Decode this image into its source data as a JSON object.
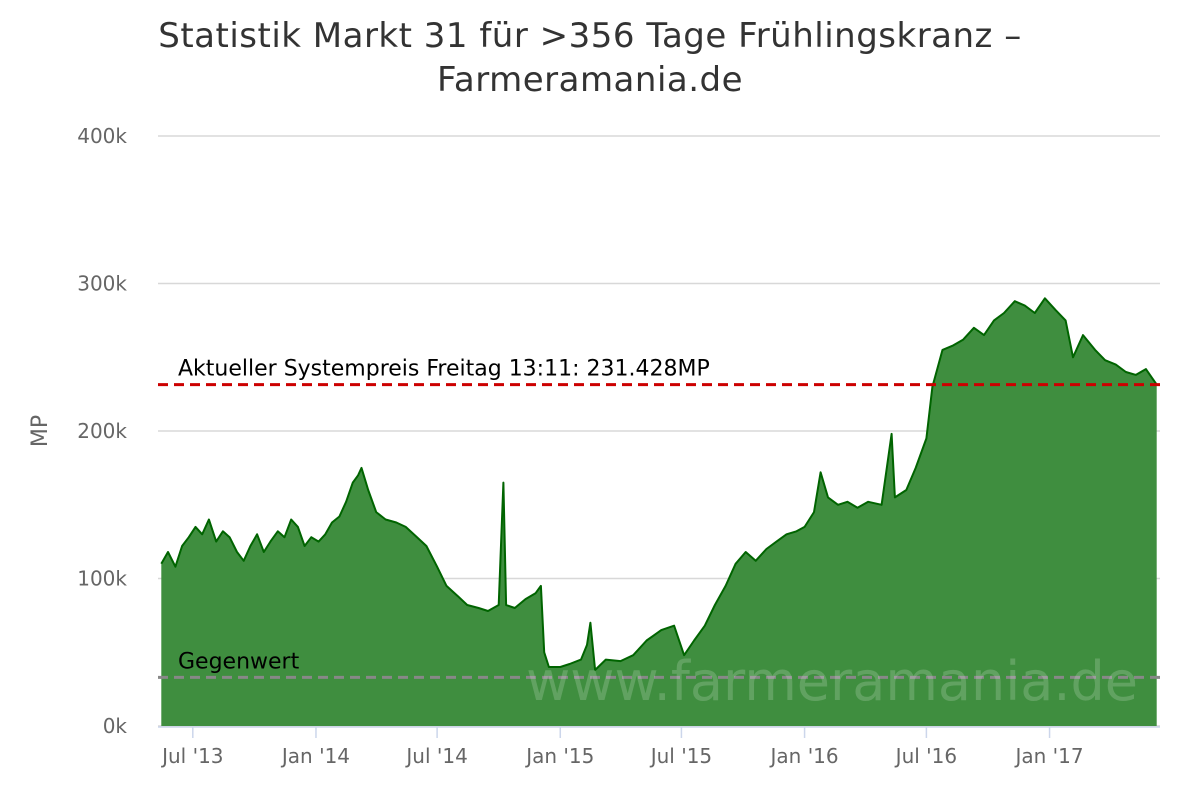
{
  "chart_data": {
    "type": "area",
    "title_line1": "Statistik Markt 31 für >356 Tage Frühlingskranz –",
    "title_line2": "Farmeramania.de",
    "ylabel": "MP",
    "ylim": [
      0,
      400000
    ],
    "y_ticks": [
      {
        "value": 0,
        "label": "0k"
      },
      {
        "value": 100000,
        "label": "100k"
      },
      {
        "value": 200000,
        "label": "200k"
      },
      {
        "value": 300000,
        "label": "300k"
      },
      {
        "value": 400000,
        "label": "400k"
      }
    ],
    "x_range": [
      "2013-05-10",
      "2017-06-15"
    ],
    "x_ticks": [
      {
        "date": "2013-07-01",
        "label": "Jul '13"
      },
      {
        "date": "2014-01-01",
        "label": "Jan '14"
      },
      {
        "date": "2014-07-01",
        "label": "Jul '14"
      },
      {
        "date": "2015-01-01",
        "label": "Jan '15"
      },
      {
        "date": "2015-07-01",
        "label": "Jul '15"
      },
      {
        "date": "2016-01-01",
        "label": "Jan '16"
      },
      {
        "date": "2016-07-01",
        "label": "Jul '16"
      },
      {
        "date": "2017-01-01",
        "label": "Jan '17"
      }
    ],
    "grid": true,
    "legend": "none",
    "series": [
      {
        "color": "#006400",
        "fill": "#3f8e3f",
        "points": [
          [
            "2013-05-15",
            110000
          ],
          [
            "2013-05-25",
            118000
          ],
          [
            "2013-06-05",
            108000
          ],
          [
            "2013-06-15",
            122000
          ],
          [
            "2013-06-25",
            128000
          ],
          [
            "2013-07-05",
            135000
          ],
          [
            "2013-07-15",
            130000
          ],
          [
            "2013-07-25",
            140000
          ],
          [
            "2013-08-05",
            125000
          ],
          [
            "2013-08-15",
            132000
          ],
          [
            "2013-08-25",
            128000
          ],
          [
            "2013-09-05",
            118000
          ],
          [
            "2013-09-15",
            112000
          ],
          [
            "2013-09-25",
            122000
          ],
          [
            "2013-10-05",
            130000
          ],
          [
            "2013-10-15",
            118000
          ],
          [
            "2013-10-25",
            125000
          ],
          [
            "2013-11-05",
            132000
          ],
          [
            "2013-11-15",
            128000
          ],
          [
            "2013-11-25",
            140000
          ],
          [
            "2013-12-05",
            135000
          ],
          [
            "2013-12-15",
            122000
          ],
          [
            "2013-12-25",
            128000
          ],
          [
            "2014-01-05",
            125000
          ],
          [
            "2014-01-15",
            130000
          ],
          [
            "2014-01-25",
            138000
          ],
          [
            "2014-02-05",
            142000
          ],
          [
            "2014-02-15",
            152000
          ],
          [
            "2014-02-25",
            165000
          ],
          [
            "2014-03-05",
            170000
          ],
          [
            "2014-03-10",
            175000
          ],
          [
            "2014-03-20",
            160000
          ],
          [
            "2014-04-01",
            145000
          ],
          [
            "2014-04-15",
            140000
          ],
          [
            "2014-05-01",
            138000
          ],
          [
            "2014-05-15",
            135000
          ],
          [
            "2014-06-01",
            128000
          ],
          [
            "2014-06-15",
            122000
          ],
          [
            "2014-07-01",
            108000
          ],
          [
            "2014-07-15",
            95000
          ],
          [
            "2014-08-01",
            88000
          ],
          [
            "2014-08-15",
            82000
          ],
          [
            "2014-09-01",
            80000
          ],
          [
            "2014-09-15",
            78000
          ],
          [
            "2014-10-01",
            82000
          ],
          [
            "2014-10-08",
            165000
          ],
          [
            "2014-10-12",
            82000
          ],
          [
            "2014-10-25",
            80000
          ],
          [
            "2014-11-10",
            86000
          ],
          [
            "2014-11-25",
            90000
          ],
          [
            "2014-12-03",
            95000
          ],
          [
            "2014-12-08",
            50000
          ],
          [
            "2014-12-15",
            40000
          ],
          [
            "2015-01-01",
            40000
          ],
          [
            "2015-01-15",
            42000
          ],
          [
            "2015-02-01",
            45000
          ],
          [
            "2015-02-10",
            55000
          ],
          [
            "2015-02-15",
            70000
          ],
          [
            "2015-02-22",
            38000
          ],
          [
            "2015-03-10",
            45000
          ],
          [
            "2015-04-01",
            44000
          ],
          [
            "2015-04-20",
            48000
          ],
          [
            "2015-05-10",
            58000
          ],
          [
            "2015-06-01",
            65000
          ],
          [
            "2015-06-20",
            68000
          ],
          [
            "2015-07-05",
            48000
          ],
          [
            "2015-07-20",
            58000
          ],
          [
            "2015-08-05",
            68000
          ],
          [
            "2015-08-20",
            82000
          ],
          [
            "2015-09-05",
            95000
          ],
          [
            "2015-09-20",
            110000
          ],
          [
            "2015-10-05",
            118000
          ],
          [
            "2015-10-20",
            112000
          ],
          [
            "2015-11-05",
            120000
          ],
          [
            "2015-11-20",
            125000
          ],
          [
            "2015-12-05",
            130000
          ],
          [
            "2015-12-20",
            132000
          ],
          [
            "2016-01-01",
            135000
          ],
          [
            "2016-01-15",
            145000
          ],
          [
            "2016-01-25",
            172000
          ],
          [
            "2016-02-05",
            155000
          ],
          [
            "2016-02-20",
            150000
          ],
          [
            "2016-03-05",
            152000
          ],
          [
            "2016-03-20",
            148000
          ],
          [
            "2016-04-05",
            152000
          ],
          [
            "2016-04-25",
            150000
          ],
          [
            "2016-05-10",
            198000
          ],
          [
            "2016-05-15",
            155000
          ],
          [
            "2016-06-01",
            160000
          ],
          [
            "2016-06-15",
            175000
          ],
          [
            "2016-07-01",
            195000
          ],
          [
            "2016-07-10",
            230000
          ],
          [
            "2016-07-25",
            255000
          ],
          [
            "2016-08-10",
            258000
          ],
          [
            "2016-08-25",
            262000
          ],
          [
            "2016-09-10",
            270000
          ],
          [
            "2016-09-25",
            265000
          ],
          [
            "2016-10-10",
            275000
          ],
          [
            "2016-10-25",
            280000
          ],
          [
            "2016-11-10",
            288000
          ],
          [
            "2016-11-25",
            285000
          ],
          [
            "2016-12-10",
            280000
          ],
          [
            "2016-12-25",
            290000
          ],
          [
            "2017-01-10",
            282000
          ],
          [
            "2017-01-25",
            275000
          ],
          [
            "2017-02-05",
            250000
          ],
          [
            "2017-02-20",
            265000
          ],
          [
            "2017-03-10",
            255000
          ],
          [
            "2017-03-25",
            248000
          ],
          [
            "2017-04-10",
            245000
          ],
          [
            "2017-04-25",
            240000
          ],
          [
            "2017-05-10",
            238000
          ],
          [
            "2017-05-25",
            242000
          ],
          [
            "2017-06-10",
            231428
          ]
        ]
      }
    ],
    "plot_lines": [
      {
        "value": 231428,
        "color": "#cc0000",
        "dash": true,
        "label": "Aktueller Systempreis Freitag 13:11: 231.428MP"
      },
      {
        "value": 33000,
        "color": "#888888",
        "dash": true,
        "label": "Gegenwert"
      }
    ],
    "watermark": "www.farmeramania.de"
  }
}
